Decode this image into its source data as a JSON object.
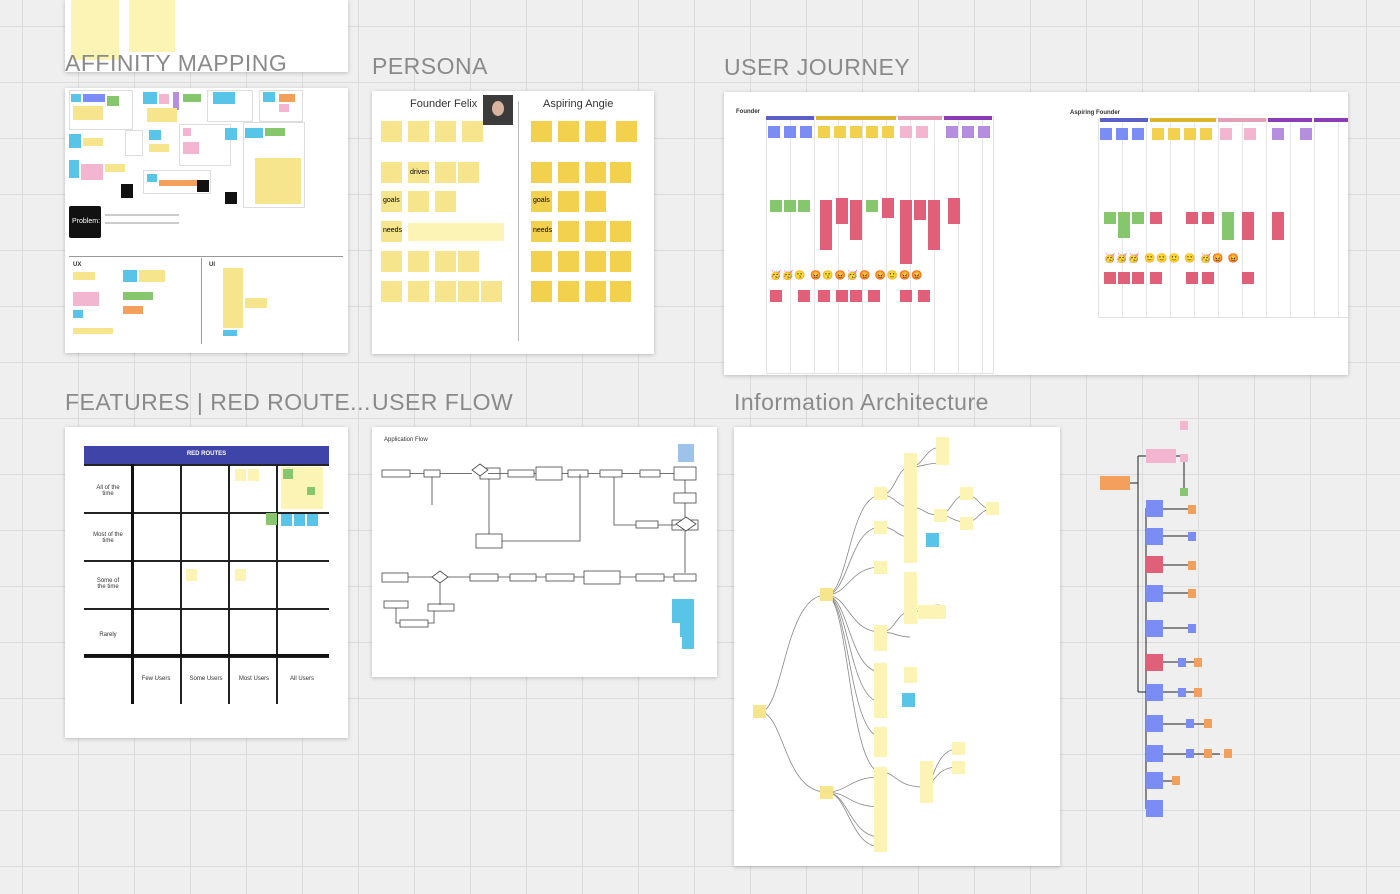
{
  "frames": {
    "affinity": {
      "title": "AFFINITY MAPPING",
      "problem_label": "Problem:",
      "ux_label": "UX",
      "ui_label": "UI"
    },
    "persona": {
      "title": "PERSONA",
      "left_name": "Founder Felix",
      "right_name": "Aspiring Angie",
      "left_rows": [
        "",
        "driven",
        "goals",
        "needs",
        "",
        ""
      ],
      "right_rows": [
        "",
        "",
        "goals",
        "needs",
        "",
        ""
      ]
    },
    "journey": {
      "title": "USER JOURNEY",
      "lane1": "Founder",
      "lane2": "Aspiring Founder"
    },
    "features": {
      "title": "FEATURES | RED ROUTE...",
      "header": "RED ROUTES",
      "rows": [
        "All of the time",
        "Most of the time",
        "Some of the time",
        "Rarely"
      ],
      "cols": [
        "Few Users",
        "Some Users",
        "Most Users",
        "All Users"
      ]
    },
    "userflow": {
      "title": "USER FLOW",
      "subtitle": "Application Flow"
    },
    "ia": {
      "title": "Information Architecture"
    }
  },
  "colors": {
    "yellow": "#f6e58d",
    "blue": "#7b8cf5",
    "pink": "#f3b6d0",
    "red": "#e05f79",
    "green": "#86c66d",
    "orange": "#f2a05b",
    "purple": "#b68ee0",
    "header_purple": "#3f45a8"
  }
}
